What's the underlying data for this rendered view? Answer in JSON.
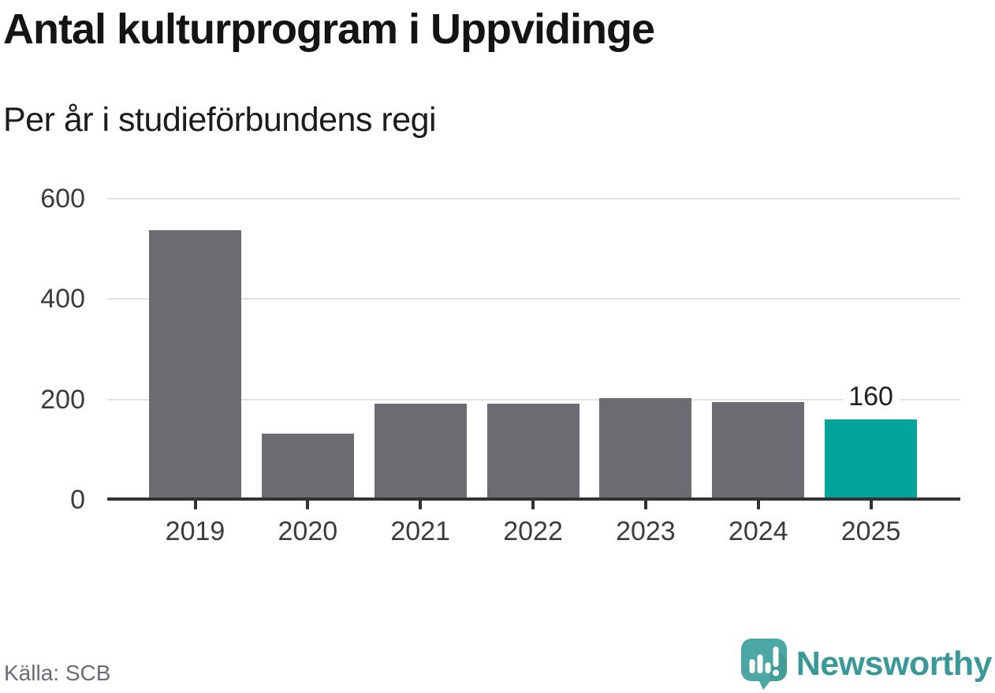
{
  "header": {
    "title": "Antal kulturprogram i Uppvidinge",
    "subtitle": "Per år i studieförbundens regi"
  },
  "footer": {
    "source": "Källa: SCB",
    "brand": "Newsworthy"
  },
  "colors": {
    "bar": "#6d6a71",
    "highlight": "#00a49b",
    "gridline": "#e2e2e2",
    "axis": "#323232",
    "tick_label": "#3c3c3c",
    "annotation_text": "#1f1f1f",
    "source_text": "#6c6c75",
    "brand_text": "#3b9899",
    "logo_bubble": "#4ba7a3",
    "logo_bubble_shade": "#3f948f"
  },
  "chart_data": {
    "type": "bar",
    "title": "Antal kulturprogram i Uppvidinge",
    "subtitle": "Per år i studieförbundens regi",
    "categories": [
      "2019",
      "2020",
      "2021",
      "2022",
      "2023",
      "2024",
      "2025"
    ],
    "values": [
      537,
      132,
      192,
      191,
      203,
      194,
      160
    ],
    "highlight_index": 6,
    "annotations": [
      {
        "index": 6,
        "text": "160"
      }
    ],
    "ylim": [
      0,
      600
    ],
    "yticks": [
      0,
      200,
      400,
      600
    ],
    "grid": "horizontal",
    "legend": "none",
    "xlabel": "",
    "ylabel": ""
  }
}
